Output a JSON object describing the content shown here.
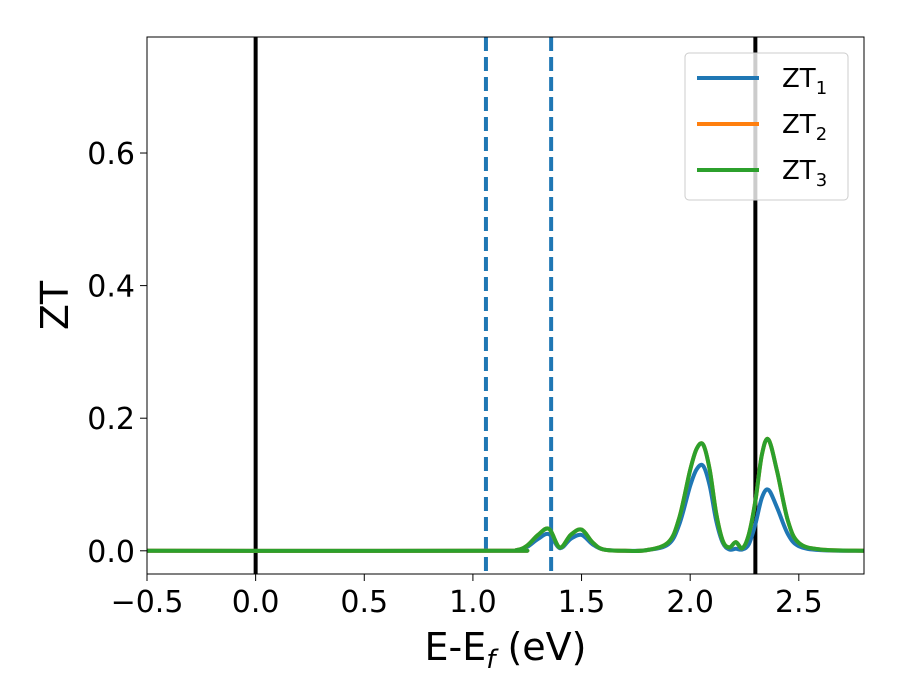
{
  "chart_data": {
    "type": "line",
    "xlabel": "E-E",
    "xlabel_sub": "f",
    "xlabel_unit": " (eV)",
    "ylabel": "ZT",
    "xlim": [
      -0.5,
      2.8
    ],
    "ylim": [
      -0.035,
      0.775
    ],
    "xticks": [
      -0.5,
      0.0,
      0.5,
      1.0,
      1.5,
      2.0,
      2.5
    ],
    "xtick_labels": [
      "−0.5",
      "0.0",
      "0.5",
      "1.0",
      "1.5",
      "2.0",
      "2.5"
    ],
    "yticks": [
      0.0,
      0.2,
      0.4,
      0.6
    ],
    "ytick_labels": [
      "0.0",
      "0.2",
      "0.4",
      "0.6"
    ],
    "grid": false,
    "legend_position": "top-right",
    "vlines": [
      {
        "x": 0.0,
        "style": "solid",
        "color": "#000000"
      },
      {
        "x": 2.3,
        "style": "solid",
        "color": "#000000"
      },
      {
        "x": 1.06,
        "style": "dashed",
        "color": "#1f77b4"
      },
      {
        "x": 1.36,
        "style": "dashed",
        "color": "#1f77b4"
      }
    ],
    "series": [
      {
        "name": "ZT",
        "name_sub": "1",
        "color": "#1f77b4",
        "x": [
          -0.5,
          1.1,
          1.2,
          1.25,
          1.3,
          1.35,
          1.4,
          1.45,
          1.5,
          1.55,
          1.6,
          1.7,
          1.8,
          1.9,
          1.95,
          2.0,
          2.03,
          2.06,
          2.09,
          2.12,
          2.15,
          2.18,
          2.21,
          2.24,
          2.27,
          2.3,
          2.33,
          2.36,
          2.4,
          2.45,
          2.5,
          2.6,
          2.8
        ],
        "y": [
          0.0,
          0.0,
          0.001,
          0.006,
          0.018,
          0.025,
          0.004,
          0.018,
          0.024,
          0.01,
          0.002,
          0.0,
          0.001,
          0.01,
          0.04,
          0.098,
          0.123,
          0.128,
          0.098,
          0.045,
          0.012,
          0.002,
          0.003,
          0.002,
          0.01,
          0.04,
          0.08,
          0.092,
          0.065,
          0.025,
          0.007,
          0.001,
          0.0
        ]
      },
      {
        "name": "ZT",
        "name_sub": "2",
        "color": "#ff7f0e",
        "x": [
          -0.5,
          1.1,
          1.2,
          1.25,
          1.3,
          1.35,
          1.4,
          1.45,
          1.5,
          1.55,
          1.6,
          1.7,
          1.8,
          1.9,
          1.95,
          2.0,
          2.03,
          2.06,
          2.09,
          2.12,
          2.15,
          2.18,
          2.21,
          2.24,
          2.27,
          2.3,
          2.33,
          2.36,
          2.4,
          2.45,
          2.5,
          2.6,
          2.8
        ],
        "y": [
          0.0,
          0.0,
          0.001,
          0.008,
          0.024,
          0.033,
          0.005,
          0.024,
          0.032,
          0.013,
          0.002,
          0.0,
          0.001,
          0.013,
          0.05,
          0.122,
          0.154,
          0.16,
          0.122,
          0.056,
          0.015,
          0.005,
          0.013,
          0.004,
          0.025,
          0.075,
          0.145,
          0.168,
          0.12,
          0.045,
          0.012,
          0.002,
          0.0
        ]
      },
      {
        "name": "ZT",
        "name_sub": "3",
        "color": "#2ca02c",
        "x": [
          -0.5,
          1.1,
          1.2,
          1.25,
          1.3,
          1.35,
          1.4,
          1.45,
          1.5,
          1.55,
          1.6,
          1.7,
          1.8,
          1.9,
          1.95,
          2.0,
          2.03,
          2.06,
          2.09,
          2.12,
          2.15,
          2.18,
          2.21,
          2.24,
          2.27,
          2.3,
          2.33,
          2.36,
          2.4,
          2.45,
          2.5,
          2.6,
          2.8
        ],
        "y": [
          0.0,
          0.0,
          0.001,
          0.008,
          0.024,
          0.033,
          0.005,
          0.024,
          0.032,
          0.013,
          0.002,
          0.0,
          0.001,
          0.013,
          0.05,
          0.122,
          0.154,
          0.16,
          0.122,
          0.056,
          0.015,
          0.005,
          0.013,
          0.004,
          0.025,
          0.075,
          0.145,
          0.168,
          0.12,
          0.045,
          0.012,
          0.002,
          0.0
        ]
      }
    ]
  }
}
